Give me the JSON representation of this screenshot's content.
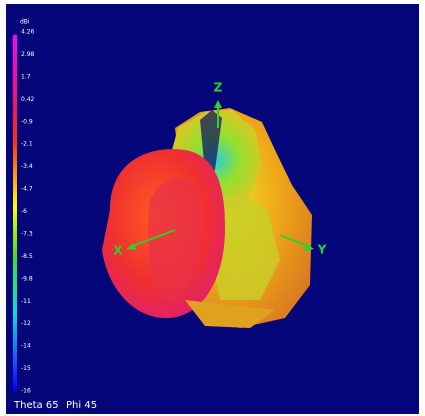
{
  "colorbar": {
    "unit": "dBi",
    "labels": [
      "4.26",
      "2.98",
      "1.7",
      "0.42",
      "-0.9",
      "-2.1",
      "-3.4",
      "-4.7",
      "-6",
      "-7.3",
      "-8.5",
      "-9.8",
      "-11",
      "-12",
      "-14",
      "-15",
      "-16"
    ]
  },
  "axes": {
    "z": "Z",
    "x": "X",
    "y": "Y"
  },
  "status": {
    "theta": "Theta 65",
    "phi": "Phi 45"
  }
}
